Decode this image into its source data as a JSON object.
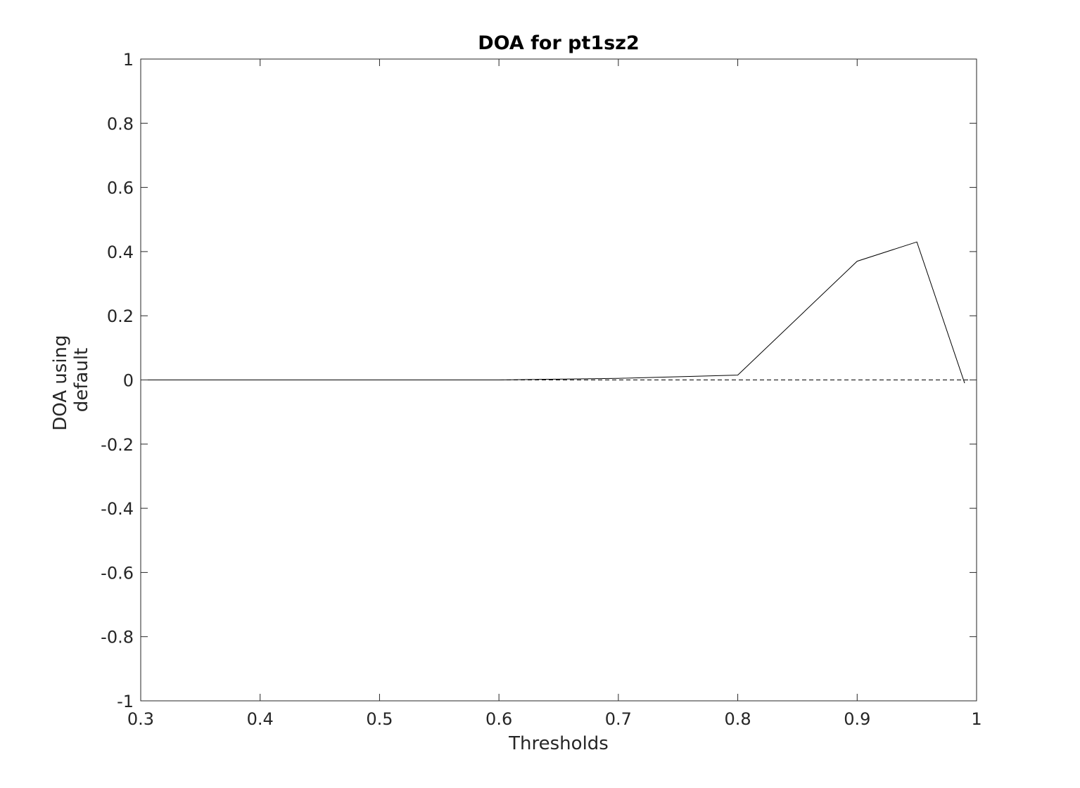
{
  "chart_data": {
    "type": "line",
    "title": "DOA for pt1sz2",
    "xlabel": "Thresholds",
    "ylabel_lines": [
      "DOA using",
      "default"
    ],
    "xlim": [
      0.3,
      1
    ],
    "ylim": [
      -1,
      1
    ],
    "xticks": [
      "0.3",
      "0.4",
      "0.5",
      "0.6",
      "0.7",
      "0.8",
      "0.9",
      "1"
    ],
    "yticks": [
      "-1",
      "-0.8",
      "-0.6",
      "-0.4",
      "-0.2",
      "0",
      "0.2",
      "0.4",
      "0.6",
      "0.8",
      "1"
    ],
    "grid": false,
    "series": [
      {
        "style": "solid",
        "color": "#000000",
        "x": [
          0.3,
          0.4,
          0.5,
          0.6,
          0.7,
          0.8,
          0.9,
          0.95,
          0.99
        ],
        "y": [
          0,
          0,
          0,
          0,
          0.005,
          0.015,
          0.37,
          0.43,
          -0.01
        ]
      }
    ],
    "reference_lines": [
      {
        "style": "dashed",
        "color": "#000000",
        "y": 0
      }
    ]
  }
}
